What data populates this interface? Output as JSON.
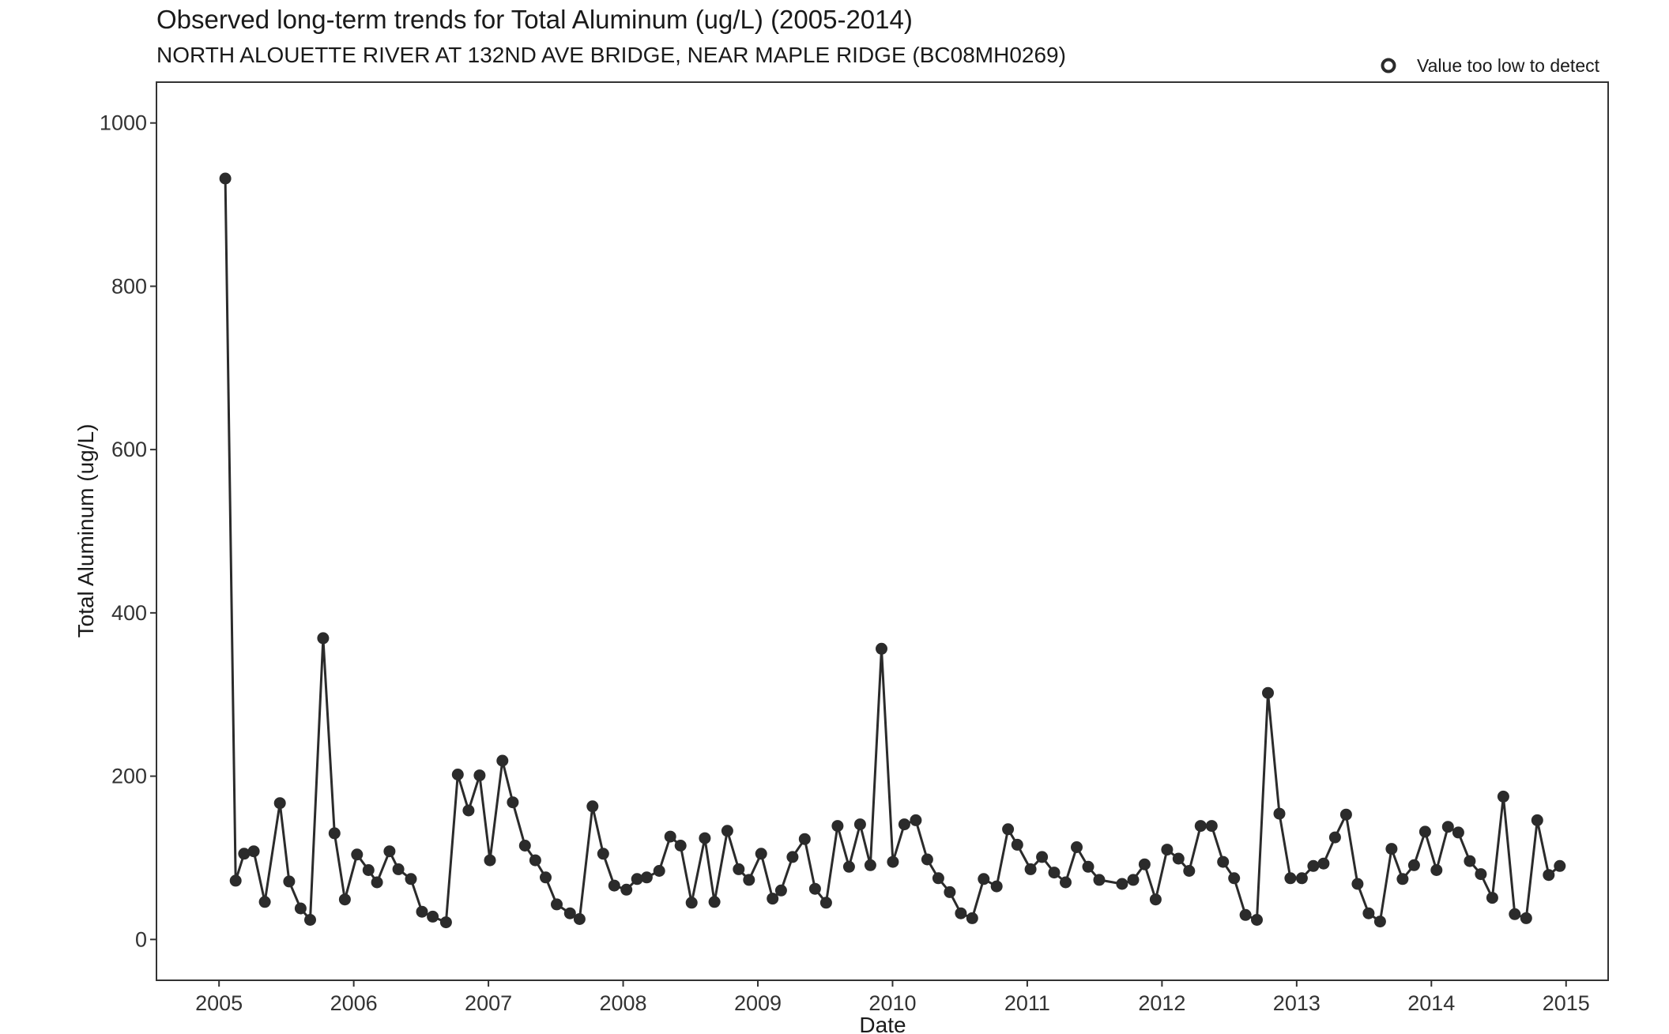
{
  "chart_data": {
    "type": "line",
    "title": "Observed long-term trends for Total Aluminum (ug/L) (2005-2014)",
    "subtitle": "NORTH ALOUETTE RIVER AT 132ND AVE BRIDGE, NEAR MAPLE RIDGE (BC08MH0269)",
    "xlabel": "Date",
    "ylabel": "Total Aluminum (ug/L)",
    "xlim": [
      "2004-07-15",
      "2015-04-25"
    ],
    "ylim": [
      -50,
      1050
    ],
    "x_ticks": [
      "2005",
      "2006",
      "2007",
      "2008",
      "2009",
      "2010",
      "2011",
      "2012",
      "2013",
      "2014",
      "2015"
    ],
    "y_ticks": [
      0,
      200,
      400,
      600,
      800,
      1000
    ],
    "grid": false,
    "legend": {
      "position": "top-right",
      "entries": [
        {
          "label": "Value too low to detect",
          "marker": "open-circle"
        }
      ]
    },
    "colors": {
      "series": "#2b2b2b",
      "axis": "#333333"
    },
    "series": [
      {
        "points": [
          [
            "2005-01-18",
            932
          ],
          [
            "2005-02-15",
            72
          ],
          [
            "2005-03-10",
            105
          ],
          [
            "2005-04-05",
            108
          ],
          [
            "2005-05-05",
            46
          ],
          [
            "2005-06-15",
            167
          ],
          [
            "2005-07-10",
            71
          ],
          [
            "2005-08-10",
            38
          ],
          [
            "2005-09-05",
            24
          ],
          [
            "2005-10-10",
            369
          ],
          [
            "2005-11-10",
            130
          ],
          [
            "2005-12-08",
            49
          ],
          [
            "2006-01-10",
            104
          ],
          [
            "2006-02-10",
            85
          ],
          [
            "2006-03-05",
            70
          ],
          [
            "2006-04-08",
            108
          ],
          [
            "2006-05-02",
            86
          ],
          [
            "2006-06-05",
            74
          ],
          [
            "2006-07-05",
            34
          ],
          [
            "2006-08-03",
            28
          ],
          [
            "2006-09-08",
            21
          ],
          [
            "2006-10-10",
            202
          ],
          [
            "2006-11-08",
            158
          ],
          [
            "2006-12-08",
            201
          ],
          [
            "2007-01-05",
            97
          ],
          [
            "2007-02-08",
            219
          ],
          [
            "2007-03-08",
            168
          ],
          [
            "2007-04-10",
            115
          ],
          [
            "2007-05-08",
            97
          ],
          [
            "2007-06-05",
            76
          ],
          [
            "2007-07-05",
            43
          ],
          [
            "2007-08-10",
            32
          ],
          [
            "2007-09-05",
            25
          ],
          [
            "2007-10-10",
            163
          ],
          [
            "2007-11-08",
            105
          ],
          [
            "2007-12-08",
            66
          ],
          [
            "2008-01-10",
            61
          ],
          [
            "2008-02-08",
            74
          ],
          [
            "2008-03-05",
            76
          ],
          [
            "2008-04-08",
            84
          ],
          [
            "2008-05-08",
            126
          ],
          [
            "2008-06-05",
            115
          ],
          [
            "2008-07-05",
            45
          ],
          [
            "2008-08-10",
            124
          ],
          [
            "2008-09-05",
            46
          ],
          [
            "2008-10-10",
            133
          ],
          [
            "2008-11-10",
            86
          ],
          [
            "2008-12-08",
            73
          ],
          [
            "2009-01-10",
            105
          ],
          [
            "2009-02-10",
            50
          ],
          [
            "2009-03-05",
            60
          ],
          [
            "2009-04-05",
            101
          ],
          [
            "2009-05-08",
            123
          ],
          [
            "2009-06-05",
            62
          ],
          [
            "2009-07-05",
            45
          ],
          [
            "2009-08-05",
            139
          ],
          [
            "2009-09-05",
            89
          ],
          [
            "2009-10-05",
            141
          ],
          [
            "2009-11-02",
            91
          ],
          [
            "2009-12-02",
            356
          ],
          [
            "2010-01-02",
            95
          ],
          [
            "2010-02-02",
            141
          ],
          [
            "2010-03-05",
            146
          ],
          [
            "2010-04-05",
            98
          ],
          [
            "2010-05-05",
            75
          ],
          [
            "2010-06-05",
            58
          ],
          [
            "2010-07-05",
            32
          ],
          [
            "2010-08-05",
            26
          ],
          [
            "2010-09-05",
            74
          ],
          [
            "2010-10-10",
            65
          ],
          [
            "2010-11-10",
            135
          ],
          [
            "2010-12-05",
            116
          ],
          [
            "2011-01-10",
            86
          ],
          [
            "2011-02-10",
            101
          ],
          [
            "2011-03-15",
            82
          ],
          [
            "2011-04-15",
            70
          ],
          [
            "2011-05-15",
            113
          ],
          [
            "2011-06-15",
            89
          ],
          [
            "2011-07-15",
            73
          ],
          [
            "2011-09-15",
            68
          ],
          [
            "2011-10-15",
            73
          ],
          [
            "2011-11-15",
            92
          ],
          [
            "2011-12-15",
            49
          ],
          [
            "2012-01-15",
            110
          ],
          [
            "2012-02-15",
            99
          ],
          [
            "2012-03-15",
            84
          ],
          [
            "2012-04-15",
            139
          ],
          [
            "2012-05-15",
            139
          ],
          [
            "2012-06-15",
            95
          ],
          [
            "2012-07-15",
            75
          ],
          [
            "2012-08-15",
            30
          ],
          [
            "2012-09-15",
            24
          ],
          [
            "2012-10-15",
            302
          ],
          [
            "2012-11-15",
            154
          ],
          [
            "2012-12-15",
            75
          ],
          [
            "2013-01-15",
            75
          ],
          [
            "2013-02-15",
            90
          ],
          [
            "2013-03-15",
            93
          ],
          [
            "2013-04-15",
            125
          ],
          [
            "2013-05-15",
            153
          ],
          [
            "2013-06-15",
            68
          ],
          [
            "2013-07-15",
            32
          ],
          [
            "2013-08-15",
            22
          ],
          [
            "2013-09-15",
            111
          ],
          [
            "2013-10-15",
            74
          ],
          [
            "2013-11-15",
            91
          ],
          [
            "2013-12-15",
            132
          ],
          [
            "2014-01-15",
            85
          ],
          [
            "2014-02-15",
            138
          ],
          [
            "2014-03-15",
            131
          ],
          [
            "2014-04-15",
            96
          ],
          [
            "2014-05-15",
            80
          ],
          [
            "2014-06-15",
            51
          ],
          [
            "2014-07-15",
            175
          ],
          [
            "2014-08-15",
            31
          ],
          [
            "2014-09-15",
            26
          ],
          [
            "2014-10-15",
            146
          ],
          [
            "2014-11-15",
            79
          ],
          [
            "2014-12-15",
            90
          ]
        ]
      }
    ]
  }
}
